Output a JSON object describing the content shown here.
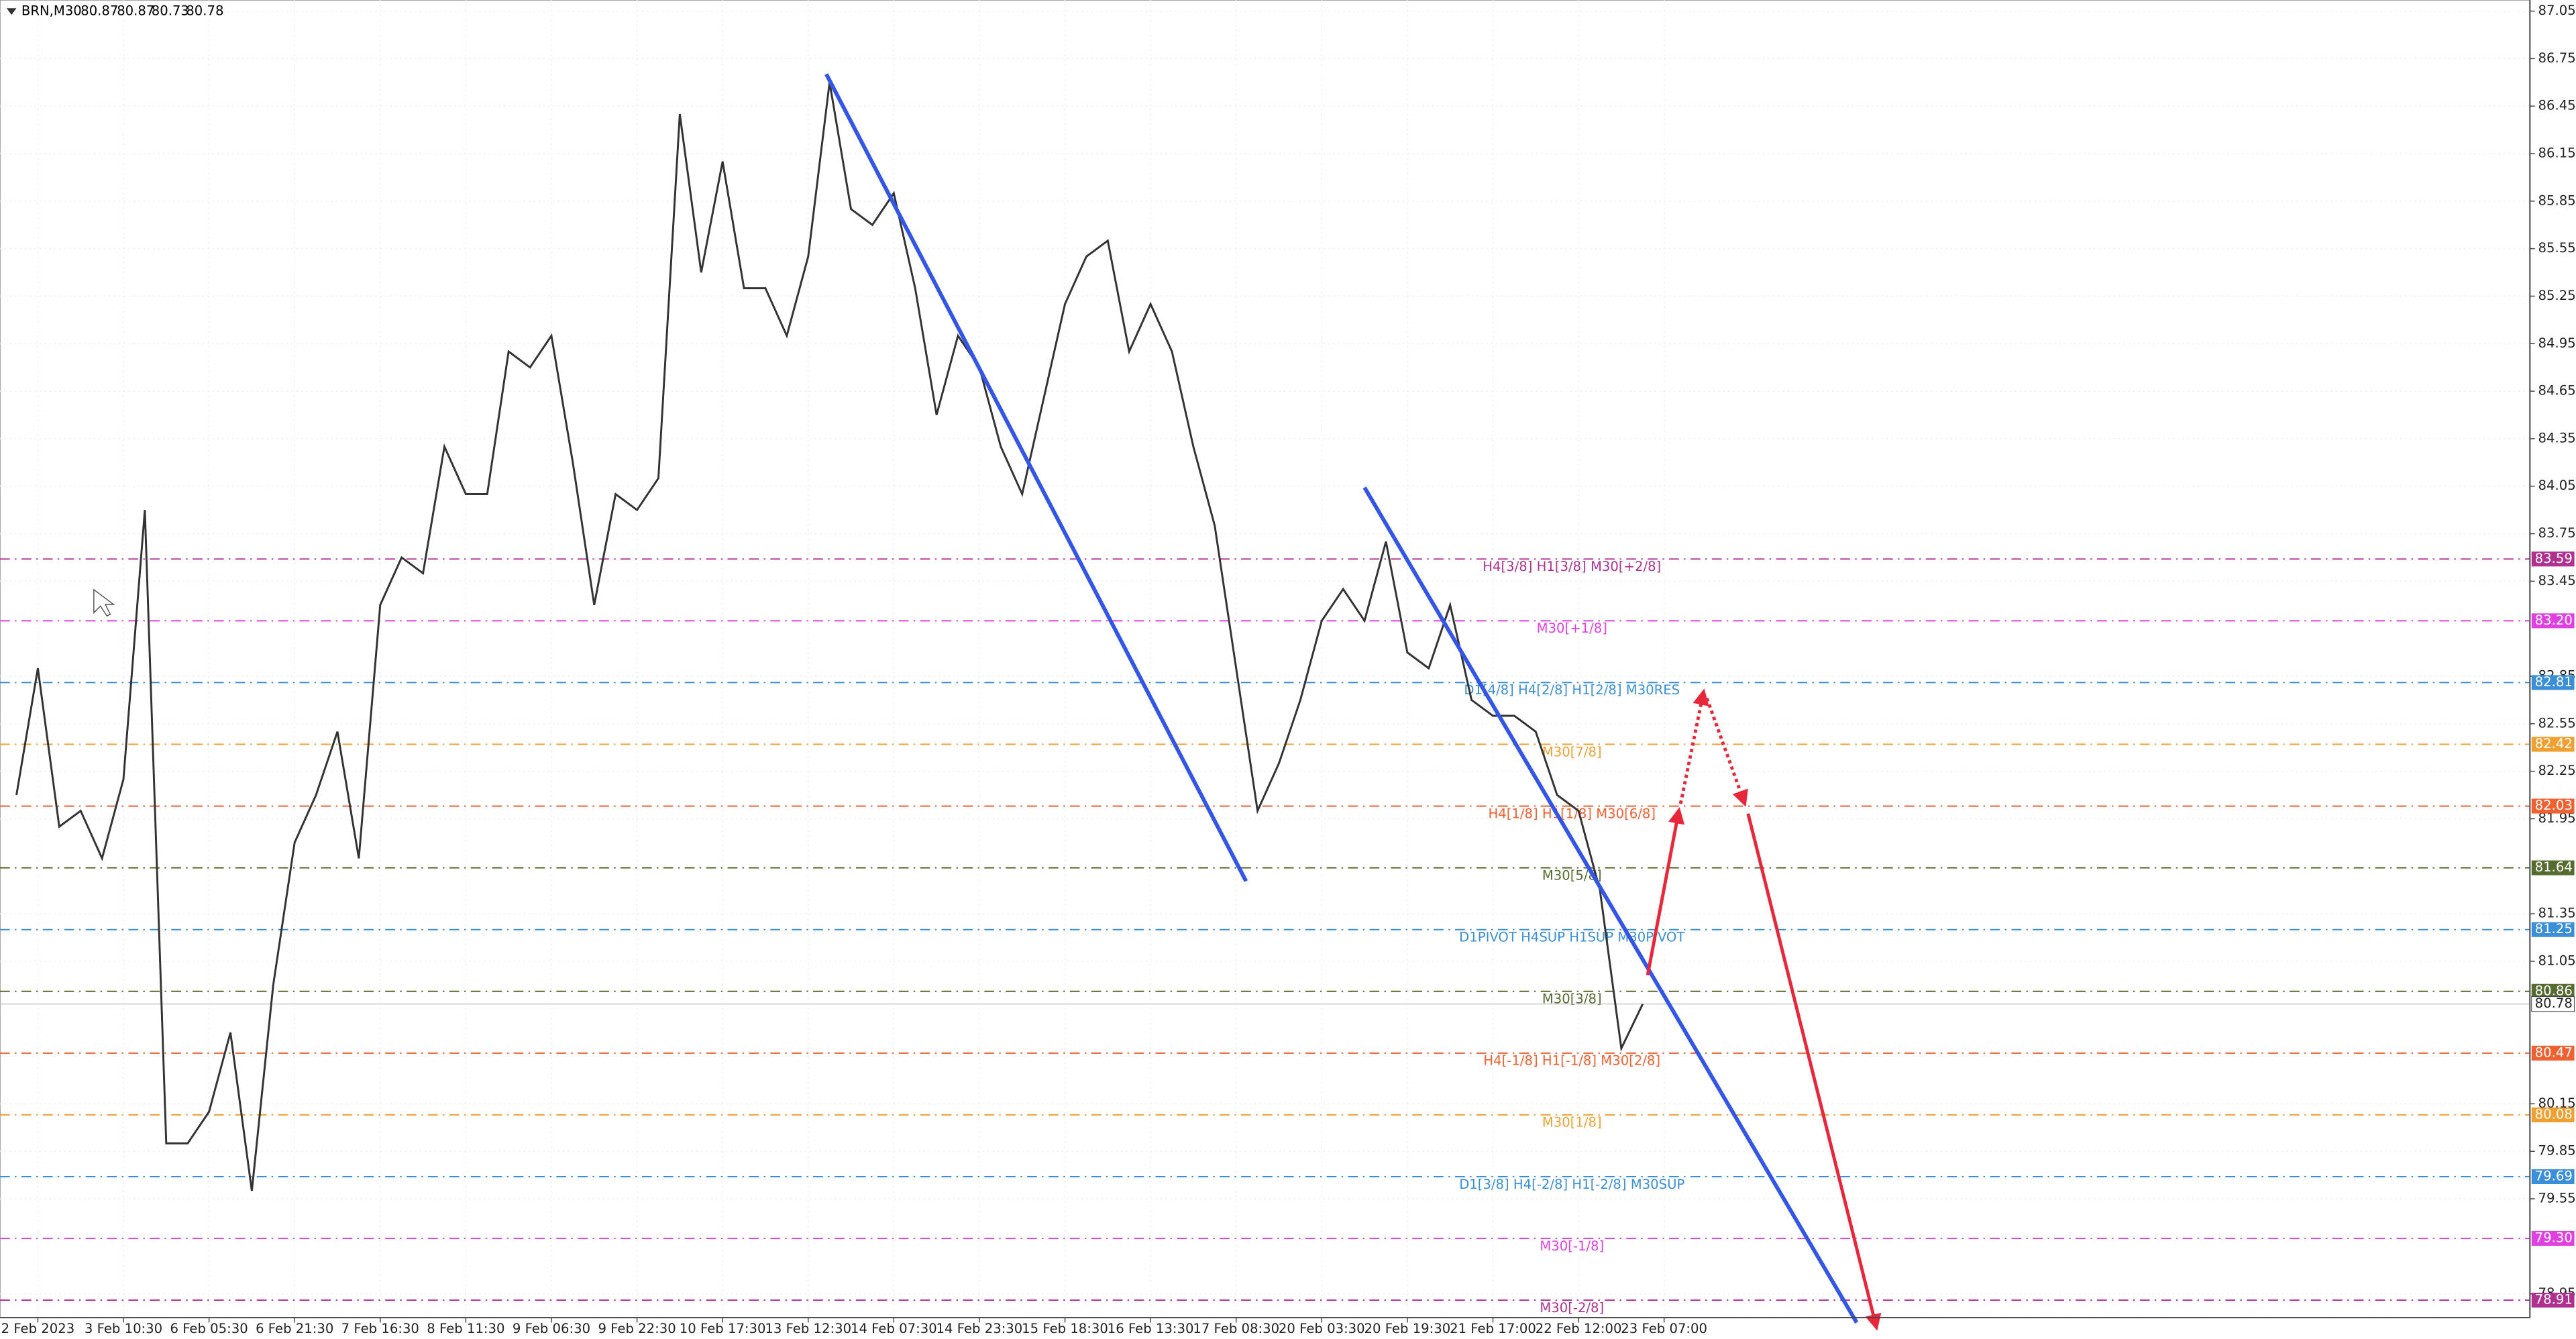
{
  "chart_data": {
    "type": "line",
    "symbol": "BRN,M30",
    "ohlc": [
      80.87,
      80.87,
      80.73,
      80.78
    ],
    "categories": [
      null,
      null,
      "2 Feb 2023",
      null,
      null,
      null,
      "3 Feb 10:30",
      null,
      null,
      null,
      "6 Feb 05:30",
      null,
      null,
      null,
      "6 Feb 21:30",
      null,
      null,
      null,
      "7 Feb 16:30",
      null,
      null,
      null,
      "8 Feb 11:30",
      null,
      null,
      null,
      "9 Feb 06:30",
      null,
      null,
      null,
      "9 Feb 22:30",
      null,
      null,
      null,
      "10 Feb 17:30",
      null,
      null,
      null,
      "13 Feb 12:30",
      null,
      null,
      null,
      "14 Feb 07:30",
      null,
      null,
      null,
      "14 Feb 23:30",
      null,
      null,
      null,
      "15 Feb 18:30",
      null,
      null,
      null,
      "16 Feb 13:30",
      null,
      null,
      null,
      "17 Feb 08:30",
      null,
      null,
      null,
      "20 Feb 03:30",
      null,
      null,
      null,
      "20 Feb 19:30",
      null,
      null,
      null,
      "21 Feb 17:00",
      null,
      null,
      null,
      "22 Feb 12:00",
      null,
      null,
      null,
      "23 Feb 07:00"
    ],
    "series": [
      {
        "name": "BRN",
        "color": "#333333",
        "values": [
          null,
          82.1,
          82.9,
          81.9,
          82.0,
          81.7,
          82.2,
          83.9,
          79.9,
          79.9,
          80.1,
          80.6,
          79.6,
          80.9,
          81.8,
          82.1,
          82.5,
          81.7,
          83.3,
          83.6,
          83.5,
          84.3,
          84.0,
          84.0,
          84.9,
          84.8,
          85.0,
          84.2,
          83.3,
          84.0,
          83.9,
          84.1,
          86.4,
          85.4,
          86.1,
          85.3,
          85.3,
          85.0,
          85.5,
          86.6,
          85.8,
          85.7,
          85.9,
          85.3,
          84.5,
          85.0,
          84.8,
          84.3,
          84.0,
          84.6,
          85.2,
          85.5,
          85.6,
          84.9,
          85.2,
          84.9,
          84.3,
          83.8,
          82.9,
          82.0,
          82.3,
          82.7,
          83.2,
          83.4,
          83.2,
          83.7,
          83.0,
          82.9,
          83.3,
          82.7,
          82.6,
          82.6,
          82.5,
          82.1,
          82.0,
          81.5,
          80.5,
          80.78,
          null
        ]
      }
    ],
    "ylim": [
      78.8,
      87.12
    ],
    "yticks": [
      87.05,
      86.75,
      86.45,
      86.15,
      85.85,
      85.55,
      85.25,
      84.95,
      84.65,
      84.35,
      84.05,
      83.75,
      83.45,
      82.85,
      82.55,
      82.25,
      81.95,
      81.35,
      81.05,
      80.15,
      79.85,
      79.55,
      78.95
    ],
    "grid": true,
    "levels": [
      {
        "name": "H4[3/8] H1[3/8] M30[+2/8]",
        "value": 83.59,
        "label": "83.59",
        "color": "#b0308f"
      },
      {
        "name": "M30[+1/8]",
        "value": 83.2,
        "label": "83.20",
        "color": "#e040e0"
      },
      {
        "name": "D1[4/8] H4[2/8] H1[2/8] M30RES",
        "value": 82.81,
        "label": "82.81",
        "color": "#3a8fd8"
      },
      {
        "name": "M30[7/8]",
        "value": 82.42,
        "label": "82.42",
        "color": "#f0a030"
      },
      {
        "name": "H4[1/8] H1[1/8] M30[6/8]",
        "value": 82.03,
        "label": "82.03",
        "color": "#f06030"
      },
      {
        "name": "M30[5/8]",
        "value": 81.64,
        "label": "81.64",
        "color": "#556b2f"
      },
      {
        "name": "D1PIVOT H4SUP H1SUP M30PIVOT",
        "value": 81.25,
        "label": "81.25",
        "color": "#3a8fd8"
      },
      {
        "name": "M30[3/8]",
        "value": 80.86,
        "label": "80.86",
        "color": "#556b2f"
      },
      {
        "name": "H4[-1/8] H1[-1/8] M30[2/8]",
        "value": 80.47,
        "label": "80.47",
        "color": "#f06030"
      },
      {
        "name": "M30[1/8]",
        "value": 80.08,
        "label": "80.08",
        "color": "#f0a030"
      },
      {
        "name": "D1[3/8] H4[-2/8] H1[-2/8] M30SUP",
        "value": 79.69,
        "label": "79.69",
        "color": "#3a8fd8"
      },
      {
        "name": "M30[-1/8]",
        "value": 79.3,
        "label": "79.30",
        "color": "#e040e0"
      },
      {
        "name": "M30[-2/8]",
        "value": 78.91,
        "label": "78.91",
        "color": "#b0308f"
      }
    ]
  }
}
